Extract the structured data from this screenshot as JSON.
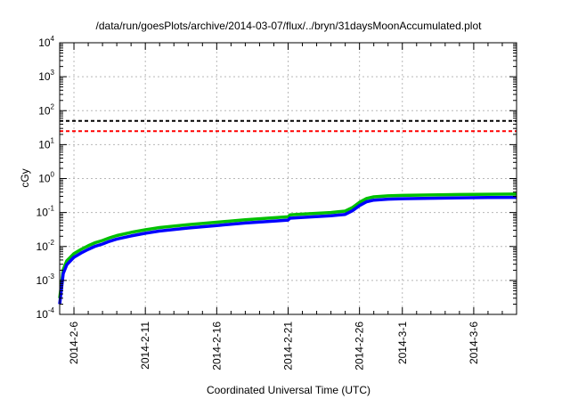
{
  "chart_data": {
    "type": "line",
    "title": "/data/run/goesPlots/archive/2014-03-07/flux/../bryn/31daysMoonAccumulated.plot",
    "xlabel": "Coordinated Universal Time (UTC)",
    "ylabel": "cGy",
    "yscale": "log",
    "ylim": [
      0.0001,
      10000
    ],
    "xlim": [
      "2014-02-05",
      "2014-03-09"
    ],
    "grid": true,
    "y_ticks": [
      {
        "value": 0.0001,
        "base": "10",
        "exp": "-4"
      },
      {
        "value": 0.001,
        "base": "10",
        "exp": "-3"
      },
      {
        "value": 0.01,
        "base": "10",
        "exp": "-2"
      },
      {
        "value": 0.1,
        "base": "10",
        "exp": "-1"
      },
      {
        "value": 1,
        "base": "10",
        "exp": "0"
      },
      {
        "value": 10,
        "base": "10",
        "exp": "1"
      },
      {
        "value": 100,
        "base": "10",
        "exp": "2"
      },
      {
        "value": 1000,
        "base": "10",
        "exp": "3"
      },
      {
        "value": 10000,
        "base": "10",
        "exp": "4"
      }
    ],
    "x_ticks": [
      {
        "date": "2014-02-06",
        "label": "2014-2-6"
      },
      {
        "date": "2014-02-11",
        "label": "2014-2-11"
      },
      {
        "date": "2014-02-16",
        "label": "2014-2-16"
      },
      {
        "date": "2014-02-21",
        "label": "2014-2-21"
      },
      {
        "date": "2014-02-26",
        "label": "2014-2-26"
      },
      {
        "date": "2014-03-01",
        "label": "2014-3-1"
      },
      {
        "date": "2014-03-06",
        "label": "2014-3-6"
      }
    ],
    "x_minor_ticks": [
      "2014-02-07",
      "2014-02-08",
      "2014-02-09",
      "2014-02-10",
      "2014-02-12",
      "2014-02-13",
      "2014-02-14",
      "2014-02-15",
      "2014-02-17",
      "2014-02-18",
      "2014-02-19",
      "2014-02-20",
      "2014-02-22",
      "2014-02-23",
      "2014-02-24",
      "2014-02-25",
      "2014-02-27",
      "2014-02-28",
      "2014-03-02",
      "2014-03-03",
      "2014-03-04",
      "2014-03-05",
      "2014-03-07",
      "2014-03-08"
    ],
    "reference_lines": [
      {
        "value": 50,
        "color": "#000000",
        "style": "dashed"
      },
      {
        "value": 25,
        "color": "#ff0000",
        "style": "dashed"
      }
    ],
    "series": [
      {
        "color": "#00c000",
        "x": [
          "2014-02-05T00:00",
          "2014-02-05T06:00",
          "2014-02-05T12:00",
          "2014-02-06T00:00",
          "2014-02-06T12:00",
          "2014-02-07T00:00",
          "2014-02-07T12:00",
          "2014-02-08T00:00",
          "2014-02-08T12:00",
          "2014-02-09T00:00",
          "2014-02-10T00:00",
          "2014-02-11T00:00",
          "2014-02-12T00:00",
          "2014-02-14T00:00",
          "2014-02-16T00:00",
          "2014-02-18T00:00",
          "2014-02-20T00:00",
          "2014-02-21T00:00",
          "2014-02-21T03:00",
          "2014-02-22T00:00",
          "2014-02-24T00:00",
          "2014-02-25T00:00",
          "2014-02-25T12:00",
          "2014-02-26T00:00",
          "2014-02-26T12:00",
          "2014-02-27T00:00",
          "2014-02-28T00:00",
          "2014-03-01T00:00",
          "2014-03-03T00:00",
          "2014-03-05T00:00",
          "2014-03-07T00:00",
          "2014-03-09T00:00"
        ],
        "y": [
          0.0003,
          0.0021,
          0.0038,
          0.0062,
          0.0082,
          0.0105,
          0.013,
          0.015,
          0.018,
          0.021,
          0.026,
          0.031,
          0.036,
          0.044,
          0.052,
          0.061,
          0.07,
          0.075,
          0.085,
          0.09,
          0.1,
          0.11,
          0.14,
          0.2,
          0.26,
          0.29,
          0.31,
          0.32,
          0.33,
          0.34,
          0.345,
          0.35
        ]
      },
      {
        "color": "#0000ff",
        "x": [
          "2014-02-05T00:00",
          "2014-02-05T06:00",
          "2014-02-05T12:00",
          "2014-02-06T00:00",
          "2014-02-06T12:00",
          "2014-02-07T00:00",
          "2014-02-07T12:00",
          "2014-02-08T00:00",
          "2014-02-08T12:00",
          "2014-02-09T00:00",
          "2014-02-10T00:00",
          "2014-02-11T00:00",
          "2014-02-12T00:00",
          "2014-02-14T00:00",
          "2014-02-16T00:00",
          "2014-02-18T00:00",
          "2014-02-20T00:00",
          "2014-02-21T00:00",
          "2014-02-21T03:00",
          "2014-02-22T00:00",
          "2014-02-24T00:00",
          "2014-02-25T00:00",
          "2014-02-25T12:00",
          "2014-02-26T00:00",
          "2014-02-26T12:00",
          "2014-02-27T00:00",
          "2014-02-28T00:00",
          "2014-03-01T00:00",
          "2014-03-03T00:00",
          "2014-03-05T00:00",
          "2014-03-07T00:00",
          "2014-03-09T00:00"
        ],
        "y": [
          0.0002,
          0.0016,
          0.0029,
          0.0048,
          0.0064,
          0.0082,
          0.0102,
          0.0118,
          0.0142,
          0.0166,
          0.0205,
          0.0245,
          0.0285,
          0.035,
          0.0415,
          0.049,
          0.056,
          0.06,
          0.068,
          0.072,
          0.08,
          0.088,
          0.112,
          0.16,
          0.208,
          0.232,
          0.248,
          0.256,
          0.264,
          0.272,
          0.276,
          0.28
        ]
      }
    ]
  }
}
